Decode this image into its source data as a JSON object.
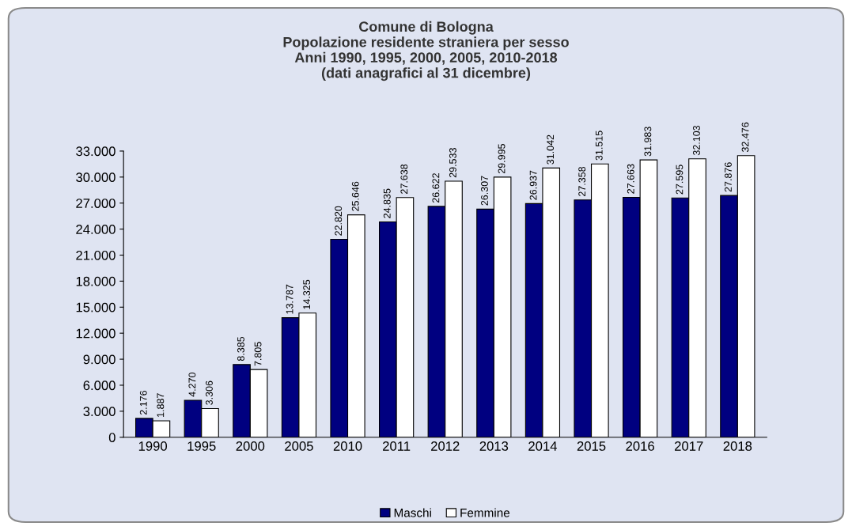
{
  "chart_data": {
    "type": "bar",
    "title": "Comune di Bologna\nPopolazione residente straniera per sesso\nAnni 1990, 1995, 2000, 2005, 2010-2018\n(dati anagrafici al 31 dicembre)",
    "categories": [
      "1990",
      "1995",
      "2000",
      "2005",
      "2010",
      "2011",
      "2012",
      "2013",
      "2014",
      "2015",
      "2016",
      "2017",
      "2018"
    ],
    "series": [
      {
        "name": "Maschi",
        "color": "#000080",
        "values": [
          2176,
          4270,
          8385,
          13787,
          22820,
          24835,
          26622,
          26307,
          26937,
          27358,
          27663,
          27595,
          27876
        ],
        "value_labels": [
          "2.176",
          "4.270",
          "8.385",
          "13.787",
          "22.820",
          "24.835",
          "26.622",
          "26.307",
          "26.937",
          "27.358",
          "27.663",
          "27.595",
          "27.876"
        ]
      },
      {
        "name": "Femmine",
        "color": "#ffffff",
        "values": [
          1887,
          3306,
          7805,
          14325,
          25646,
          27638,
          29533,
          29995,
          31042,
          31515,
          31983,
          32103,
          32476
        ],
        "value_labels": [
          "1.887",
          "3.306",
          "7.805",
          "14.325",
          "25.646",
          "27.638",
          "29.533",
          "29.995",
          "31.042",
          "31.515",
          "31.983",
          "32.103",
          "32.476"
        ]
      }
    ],
    "ylim": [
      0,
      33000
    ],
    "yticks": [
      {
        "value": 0,
        "label": "0"
      },
      {
        "value": 3000,
        "label": "3.000"
      },
      {
        "value": 6000,
        "label": "6.000"
      },
      {
        "value": 9000,
        "label": "9.000"
      },
      {
        "value": 12000,
        "label": "12.000"
      },
      {
        "value": 15000,
        "label": "15.000"
      },
      {
        "value": 18000,
        "label": "18.000"
      },
      {
        "value": 21000,
        "label": "21.000"
      },
      {
        "value": 24000,
        "label": "24.000"
      },
      {
        "value": 27000,
        "label": "27.000"
      },
      {
        "value": 30000,
        "label": "30.000"
      },
      {
        "value": 33000,
        "label": "33.000"
      }
    ],
    "grid": false,
    "legend": "bottom"
  }
}
